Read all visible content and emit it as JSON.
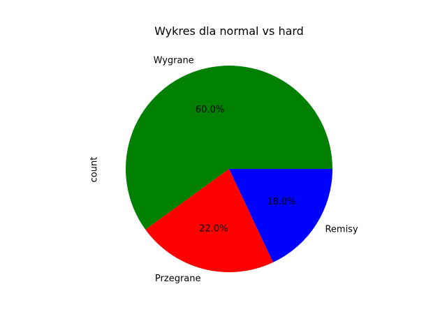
{
  "chart_data": {
    "type": "pie",
    "title": "Wykres dla normal vs hard",
    "ylabel": "count",
    "categories": [
      "Wygrane",
      "Przegrane",
      "Remisy"
    ],
    "values": [
      60.0,
      22.0,
      18.0
    ],
    "percent_labels": [
      "60.0%",
      "22.0%",
      "18.0%"
    ],
    "colors": [
      "#008000",
      "#ff0000",
      "#0000ff"
    ],
    "start_angle": 0,
    "direction": "counterclockwise",
    "legend": "none"
  }
}
